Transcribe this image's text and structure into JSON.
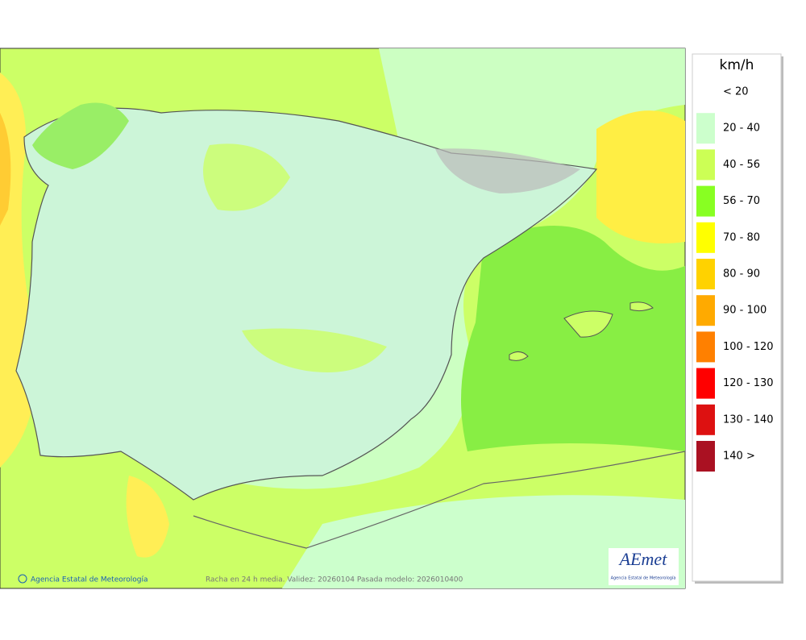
{
  "map": {
    "credit": "Agencia Estatal de Meteorología",
    "caption": "Racha en 24 h media. Validez: 20260104 Pasada modelo: 2026010400",
    "logo": {
      "name": "AEmet",
      "subtitle": "Agencia Estatal de Meteorología"
    }
  },
  "legend": {
    "title": "km/h",
    "items": [
      {
        "label": "< 20",
        "color": "#ffffff"
      },
      {
        "label": "20 - 40",
        "color": "#ccffcc"
      },
      {
        "label": "40 - 56",
        "color": "#ccff55"
      },
      {
        "label": "56 - 70",
        "color": "#88ff22"
      },
      {
        "label": "70 - 80",
        "color": "#ffff00"
      },
      {
        "label": "80 - 90",
        "color": "#ffd200"
      },
      {
        "label": "90 - 100",
        "color": "#ffaa00"
      },
      {
        "label": "100 - 120",
        "color": "#ff8000"
      },
      {
        "label": "120 - 130",
        "color": "#ff0000"
      },
      {
        "label": "130 - 140",
        "color": "#dd1111"
      },
      {
        "label": "140 >",
        "color": "#aa1122"
      }
    ]
  }
}
